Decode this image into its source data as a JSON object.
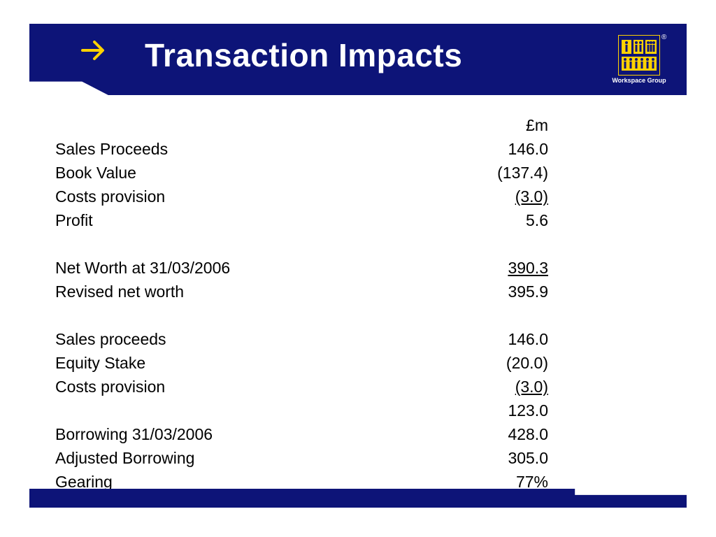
{
  "header": {
    "title": "Transaction Impacts",
    "accent_color": "#ffd200",
    "background_color": "#0d1478",
    "arrow_icon": "arrow-right-icon"
  },
  "logo": {
    "text": "Workspace Group",
    "registered": "®",
    "icon": "people-grid-icon"
  },
  "table": {
    "unit_header": "£m",
    "rows": [
      {
        "label": "Sales Proceeds",
        "value": "146.0",
        "underline": false
      },
      {
        "label": "Book Value",
        "value": "(137.4)",
        "underline": false
      },
      {
        "label": "Costs provision",
        "value": "(3.0)",
        "underline": true
      },
      {
        "label": "Profit",
        "value": "5.6",
        "underline": false
      },
      {
        "label": "",
        "value": "",
        "underline": false
      },
      {
        "label": "Net Worth at 31/03/2006",
        "value": "390.3",
        "underline": true
      },
      {
        "label": "Revised net worth",
        "value": "395.9",
        "underline": false
      },
      {
        "label": "",
        "value": "",
        "underline": false
      },
      {
        "label": "Sales proceeds",
        "value": "146.0",
        "underline": false
      },
      {
        "label": "Equity Stake",
        "value": "(20.0)",
        "underline": false
      },
      {
        "label": "Costs provision",
        "value": "(3.0)",
        "underline": true
      },
      {
        "label": "",
        "value": "123.0",
        "underline": false
      },
      {
        "label": "Borrowing 31/03/2006",
        "value": "428.0",
        "underline": false
      },
      {
        "label": "Adjusted Borrowing",
        "value": "305.0",
        "underline": false
      },
      {
        "label": "Gearing",
        "value": "77%",
        "underline": false
      }
    ]
  }
}
